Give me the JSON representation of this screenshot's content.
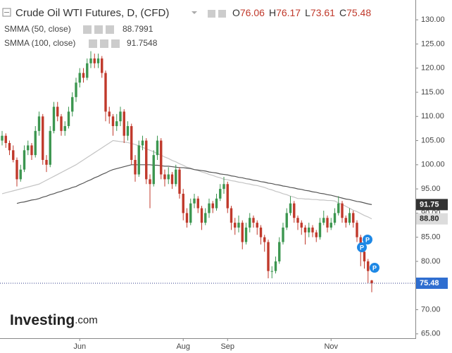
{
  "chart_data": {
    "type": "candlestick",
    "title": "Crude Oil WTI Futures, D, (CFD)",
    "ohlc_labels": [
      "O",
      "H",
      "L",
      "C"
    ],
    "logo": [
      "Investing",
      ".com"
    ],
    "up_color": "#3c9650",
    "down_color": "#c0392b",
    "ylim": [
      64.1,
      134.1
    ],
    "yticks": [
      {
        "value": 65,
        "label": "65.00"
      },
      {
        "value": 70,
        "label": "70.00"
      },
      {
        "value": 75,
        "label": "75.00"
      },
      {
        "value": 80,
        "label": "80.00"
      },
      {
        "value": 85,
        "label": "85.00"
      },
      {
        "value": 90,
        "label": "90.00"
      },
      {
        "value": 95,
        "label": "95.00"
      },
      {
        "value": 100,
        "label": "100.00"
      },
      {
        "value": 105,
        "label": "105.00"
      },
      {
        "value": 110,
        "label": "110.00"
      },
      {
        "value": 115,
        "label": "115.00"
      },
      {
        "value": 120,
        "label": "120.00"
      },
      {
        "value": 125,
        "label": "125.00"
      },
      {
        "value": 130,
        "label": "130.00"
      }
    ],
    "categories": [
      null,
      null,
      null,
      null,
      null,
      null,
      null,
      null,
      null,
      null,
      null,
      null,
      null,
      null,
      null,
      null,
      null,
      null,
      null,
      null,
      null,
      "Jun",
      null,
      null,
      null,
      null,
      null,
      null,
      null,
      null,
      null,
      null,
      null,
      null,
      null,
      null,
      null,
      null,
      null,
      null,
      null,
      null,
      null,
      null,
      null,
      null,
      null,
      null,
      null,
      "Aug",
      null,
      null,
      null,
      null,
      null,
      null,
      null,
      null,
      null,
      null,
      null,
      "Sep",
      null,
      null,
      null,
      null,
      null,
      null,
      null,
      null,
      null,
      null,
      null,
      null,
      null,
      null,
      null,
      null,
      null,
      null,
      null,
      null,
      null,
      null,
      null,
      null,
      null,
      null,
      null,
      "Nov",
      null,
      null,
      null,
      null,
      null,
      null,
      null,
      null,
      null,
      null,
      null
    ],
    "candles": [
      [
        105,
        107,
        104,
        106
      ],
      [
        106,
        106.5,
        103.5,
        104.5
      ],
      [
        104.5,
        105,
        102,
        103
      ],
      [
        103,
        104,
        100.5,
        101
      ],
      [
        101,
        101.5,
        95.5,
        97
      ],
      [
        97,
        100,
        96.5,
        99
      ],
      [
        99,
        104,
        98.5,
        103
      ],
      [
        103,
        105,
        102,
        104
      ],
      [
        104,
        104.5,
        101,
        102
      ],
      [
        102,
        108,
        101.5,
        107
      ],
      [
        107,
        111,
        106,
        110
      ],
      [
        110,
        110.5,
        100,
        101
      ],
      [
        101,
        102,
        98.5,
        100
      ],
      [
        100,
        108,
        99.5,
        107
      ],
      [
        107,
        113,
        106.5,
        112
      ],
      [
        112,
        113,
        109,
        110
      ],
      [
        110,
        110.5,
        106,
        107
      ],
      [
        107,
        109,
        106,
        108
      ],
      [
        108,
        112,
        107.5,
        111
      ],
      [
        111,
        115,
        110,
        114
      ],
      [
        114,
        118,
        113,
        117
      ],
      [
        117,
        120,
        116,
        119
      ],
      [
        119,
        120,
        117,
        118
      ],
      [
        118,
        122,
        117.5,
        121
      ],
      [
        121,
        123.5,
        120,
        122
      ],
      [
        122,
        123,
        120,
        121
      ],
      [
        121,
        123,
        120,
        122
      ],
      [
        122,
        122.5,
        118,
        119
      ],
      [
        119,
        119.5,
        109,
        111
      ],
      [
        111,
        112,
        108.5,
        110
      ],
      [
        110,
        110.5,
        106,
        108
      ],
      [
        108,
        110.5,
        107,
        109
      ],
      [
        109,
        112,
        108,
        111
      ],
      [
        111,
        111.5,
        104.5,
        106
      ],
      [
        106,
        109,
        105,
        108
      ],
      [
        108,
        108.5,
        100,
        101
      ],
      [
        101,
        102,
        96.5,
        98
      ],
      [
        98,
        105,
        97.5,
        104
      ],
      [
        104,
        106,
        103,
        105
      ],
      [
        105,
        105.5,
        96,
        97
      ],
      [
        97,
        98,
        91,
        96
      ],
      [
        96,
        103,
        95.5,
        102
      ],
      [
        102,
        106,
        101,
        105
      ],
      [
        105,
        105.5,
        97,
        98
      ],
      [
        98,
        99,
        95.5,
        97
      ],
      [
        97,
        99.5,
        96,
        98
      ],
      [
        98,
        98.5,
        95,
        96
      ],
      [
        96,
        100,
        95.5,
        99
      ],
      [
        99,
        99.5,
        93,
        94
      ],
      [
        94,
        95,
        88.5,
        90
      ],
      [
        90,
        91,
        87,
        88
      ],
      [
        88,
        93,
        87.5,
        92
      ],
      [
        92,
        94,
        91,
        93
      ],
      [
        93,
        93.5,
        90,
        91
      ],
      [
        91,
        91.5,
        86.5,
        88
      ],
      [
        88,
        91,
        87.5,
        90
      ],
      [
        90,
        93,
        89,
        92
      ],
      [
        92,
        92.5,
        90,
        91
      ],
      [
        91,
        94,
        90.5,
        93
      ],
      [
        93,
        96,
        92.5,
        95
      ],
      [
        95,
        97.5,
        94,
        96
      ],
      [
        96,
        96.5,
        90,
        91
      ],
      [
        91,
        91.5,
        86.5,
        88
      ],
      [
        88,
        89,
        85.5,
        87
      ],
      [
        87,
        89.5,
        86,
        88
      ],
      [
        88,
        88.5,
        82.5,
        84
      ],
      [
        84,
        88,
        83.5,
        87
      ],
      [
        87,
        90,
        86,
        89
      ],
      [
        89,
        89.5,
        87,
        88
      ],
      [
        88,
        88.5,
        85.5,
        87
      ],
      [
        87,
        87.5,
        83.5,
        85
      ],
      [
        85,
        85.5,
        82,
        84
      ],
      [
        84,
        84.5,
        76.5,
        78
      ],
      [
        78,
        79,
        76.5,
        78
      ],
      [
        78,
        81,
        77.5,
        80
      ],
      [
        80,
        85,
        79.5,
        84
      ],
      [
        84,
        88,
        83.5,
        87
      ],
      [
        87,
        91,
        86.5,
        90
      ],
      [
        90,
        93.5,
        89.5,
        92
      ],
      [
        92,
        92.5,
        88,
        89
      ],
      [
        89,
        89.5,
        86.5,
        88
      ],
      [
        88,
        88.5,
        85.5,
        87
      ],
      [
        87,
        87.5,
        83.5,
        86
      ],
      [
        86,
        88,
        85,
        87
      ],
      [
        87,
        87.5,
        85,
        86
      ],
      [
        86,
        86.5,
        84,
        85
      ],
      [
        85,
        89,
        84.5,
        88
      ],
      [
        88,
        90.5,
        87.5,
        89
      ],
      [
        89,
        89.5,
        86,
        87
      ],
      [
        87,
        89,
        86.5,
        88
      ],
      [
        88,
        91,
        87.5,
        90
      ],
      [
        90,
        93.5,
        89.5,
        92
      ],
      [
        92,
        92.5,
        88,
        89
      ],
      [
        89,
        89.5,
        87,
        88
      ],
      [
        88,
        91,
        87.5,
        90
      ],
      [
        90,
        90.5,
        87,
        88
      ],
      [
        88,
        88.5,
        84,
        85
      ],
      [
        85,
        85.5,
        79,
        82
      ],
      [
        82,
        83,
        78.5,
        80
      ],
      [
        80,
        80.5,
        75.5,
        78
      ],
      [
        76.06,
        76.17,
        73.61,
        75.48
      ]
    ],
    "series": [
      {
        "name": "SMMA (50, close)",
        "color": "#c4c4c4",
        "tag_color": "#dcdcdc",
        "tag_text_color": "#222",
        "last_label": "88.80",
        "values": [
          94,
          94.2,
          94.4,
          94.6,
          94.8,
          95,
          95.2,
          95.4,
          95.6,
          95.8,
          96,
          96.4,
          96.8,
          97.2,
          97.6,
          98,
          98.4,
          98.8,
          99.2,
          99.6,
          100,
          100.5,
          101,
          101.5,
          102,
          102.5,
          103,
          103.5,
          104,
          104.5,
          105,
          104.9,
          104.8,
          104.7,
          104.6,
          104.4,
          104.2,
          103.9,
          103.6,
          103.3,
          103,
          102.7,
          102.3,
          102,
          101.6,
          101.3,
          100.9,
          100.6,
          100.2,
          99.9,
          99.5,
          99.3,
          99,
          98.8,
          98.5,
          98.3,
          98,
          97.8,
          97.5,
          97.3,
          97,
          96.9,
          96.7,
          96.6,
          96.4,
          96.3,
          96.1,
          96,
          95.8,
          95.7,
          95.5,
          95.3,
          95,
          94.8,
          94.5,
          94.3,
          94,
          93.8,
          93.5,
          93.3,
          93,
          93,
          92.9,
          92.9,
          92.8,
          92.8,
          92.7,
          92.7,
          92.6,
          92.6,
          92.5,
          92.1,
          91.8,
          91.4,
          91,
          90.6,
          90.3,
          89.9,
          89.5,
          89.2,
          88.7991
        ]
      },
      {
        "name": "SMMA (100, close)",
        "color": "#555555",
        "tag_color": "#333333",
        "tag_text_color": "#ffffff",
        "last_label": "91.75",
        "values": [
          null,
          null,
          null,
          null,
          92,
          92.2,
          92.3,
          92.5,
          92.7,
          92.8,
          93,
          93.3,
          93.5,
          93.8,
          94,
          94.3,
          94.5,
          94.8,
          95,
          95.3,
          95.5,
          95.9,
          96.2,
          96.6,
          96.9,
          97.3,
          97.6,
          98,
          98.3,
          98.7,
          99,
          99.2,
          99.4,
          99.6,
          99.8,
          100,
          100,
          100,
          100,
          100,
          100,
          99.9,
          99.9,
          99.8,
          99.7,
          99.7,
          99.6,
          99.5,
          99.4,
          99.4,
          99.3,
          99.2,
          99,
          98.9,
          98.8,
          98.7,
          98.5,
          98.4,
          98.3,
          98.1,
          98,
          97.9,
          97.7,
          97.6,
          97.4,
          97.3,
          97.1,
          97,
          96.8,
          96.7,
          96.5,
          96.4,
          96.2,
          96.1,
          95.9,
          95.8,
          95.6,
          95.5,
          95.3,
          95.2,
          95,
          94.9,
          94.7,
          94.6,
          94.4,
          94.3,
          94.1,
          94,
          93.8,
          93.7,
          93.5,
          93.3,
          93.1,
          92.9,
          92.8,
          92.6,
          92.4,
          92.3,
          92.1,
          91.9,
          91.7548
        ]
      }
    ],
    "price_tag_color": "#2f6ed0"
  }
}
